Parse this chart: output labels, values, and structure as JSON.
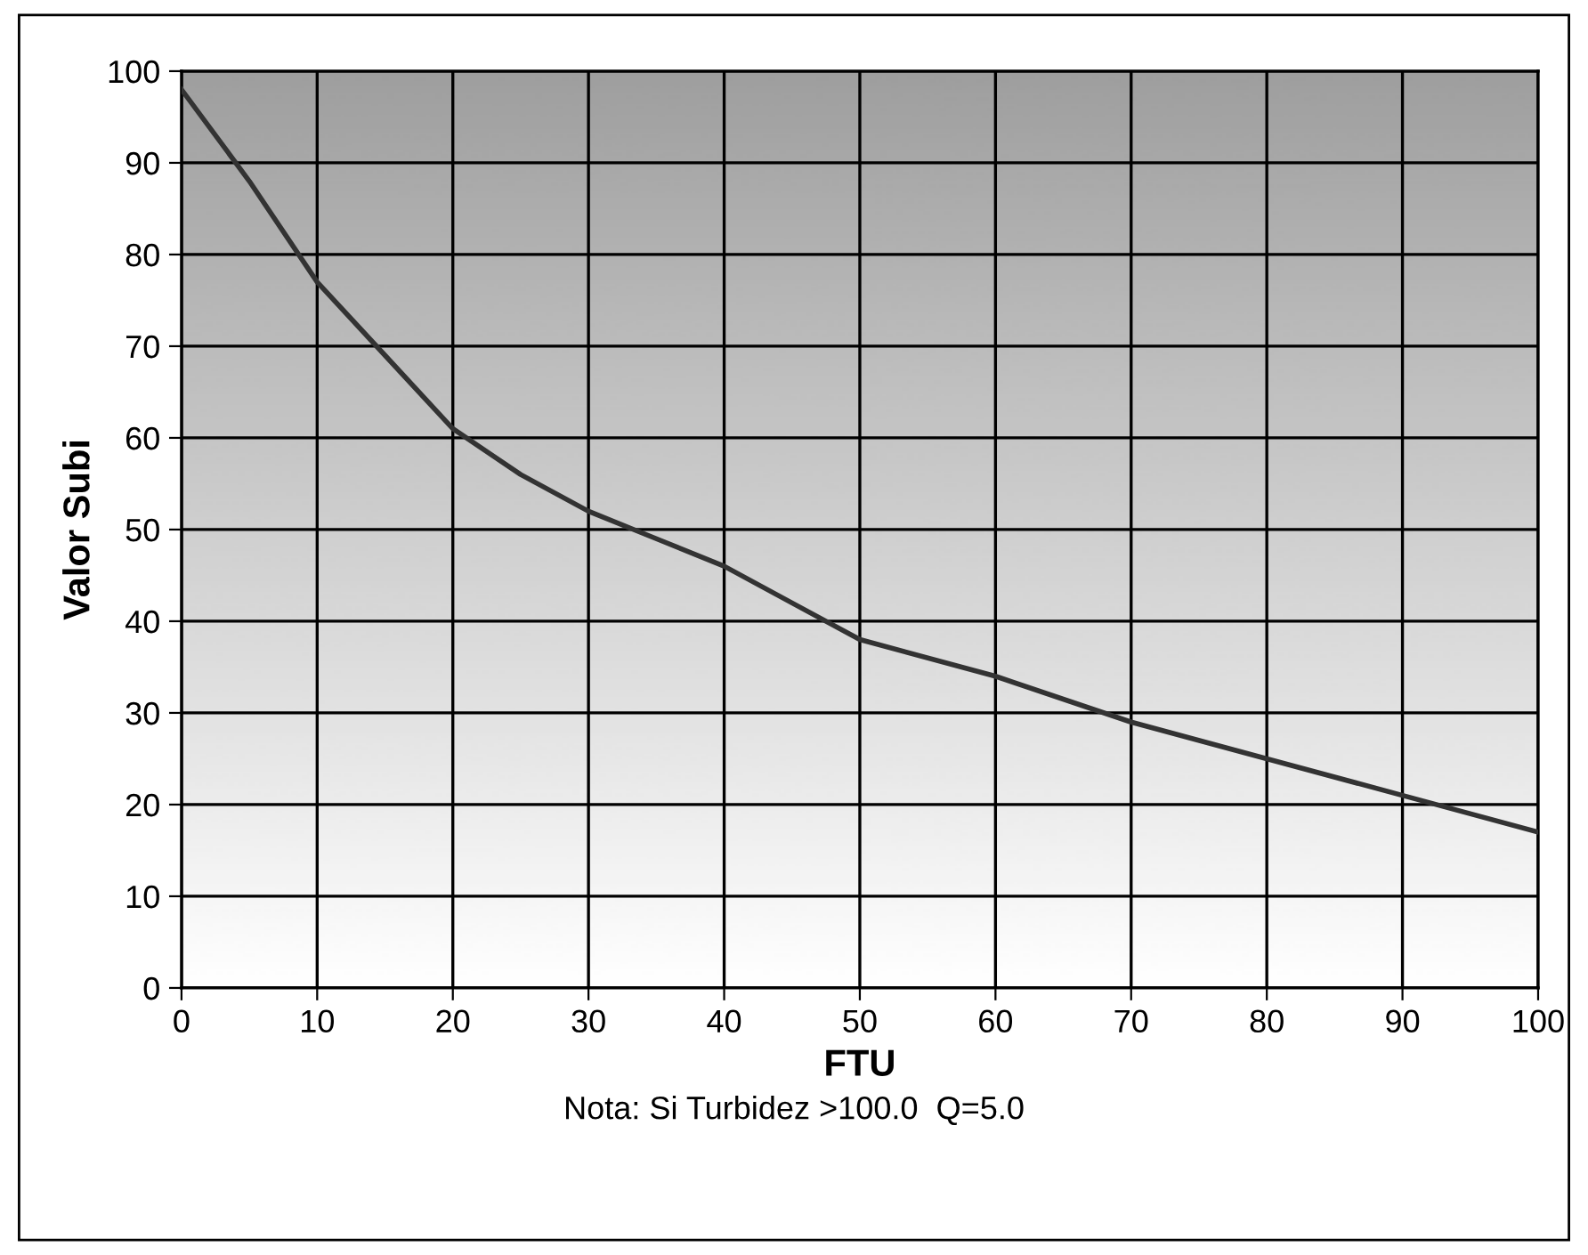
{
  "chart_data": {
    "type": "line",
    "xlabel": "FTU",
    "ylabel": "Valor Subi",
    "annotations": [
      "Nota: Si Turbidez >100.0  Q=5.0"
    ],
    "series": [
      {
        "color": "#333333",
        "x": [
          0,
          5,
          10,
          15,
          20,
          25,
          30,
          35,
          40,
          45,
          50,
          60,
          70,
          80,
          90,
          100
        ],
        "values": [
          98,
          88,
          77,
          69,
          61,
          56,
          52,
          49,
          46,
          42,
          38,
          34,
          29,
          25,
          21,
          17
        ]
      }
    ],
    "xlim": [
      0,
      100
    ],
    "xticks": [
      0,
      10,
      20,
      30,
      40,
      50,
      60,
      70,
      80,
      90,
      100
    ],
    "ylim": [
      0,
      100
    ],
    "yticks": [
      0,
      10,
      20,
      30,
      40,
      50,
      60,
      70,
      80,
      90,
      100
    ],
    "grid": true,
    "marker": "none",
    "line_style": "solid",
    "legend": false
  }
}
